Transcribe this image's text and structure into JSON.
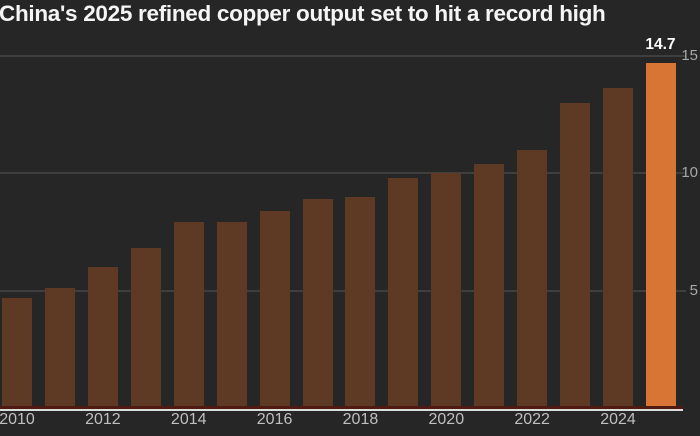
{
  "title": "China's 2025 refined copper output set to hit a record high",
  "chart_data": {
    "type": "bar",
    "title": "China's 2025 refined copper output set to hit a record high",
    "categories": [
      "2010",
      "2011",
      "2012",
      "2013",
      "2014",
      "2015",
      "2016",
      "2017",
      "2018",
      "2019",
      "2020",
      "2021",
      "2022",
      "2023",
      "2024",
      "2025"
    ],
    "values": [
      4.7,
      5.1,
      6.0,
      6.8,
      7.9,
      7.9,
      8.4,
      8.9,
      9.0,
      9.8,
      10.0,
      10.4,
      11.0,
      13.0,
      13.6,
      14.7
    ],
    "highlight": {
      "category": "2025",
      "value": 14.7,
      "label": "14.7"
    },
    "x_tick_labels": [
      "2010",
      "2012",
      "2014",
      "2016",
      "2018",
      "2020",
      "2022",
      "2024"
    ],
    "y_ticks": [
      5,
      10,
      15
    ],
    "y_tick_labels": [
      "5",
      "10",
      "15"
    ],
    "ylim": [
      0,
      15
    ],
    "xlabel": "",
    "ylabel": "",
    "grid": "horizontal",
    "legend": "none",
    "colors": {
      "background": "#262626",
      "bar": "#5e3a24",
      "highlight_bar": "#d97534",
      "gridline": "#3e3e3e",
      "baseline_accent": "#4e1a11",
      "baseline": "#dcdcdc",
      "x_tick": "#bfbfbf",
      "y_tick": "#a8a8a8",
      "value_label": "#ffffff",
      "title": "#f5f5f5"
    }
  }
}
